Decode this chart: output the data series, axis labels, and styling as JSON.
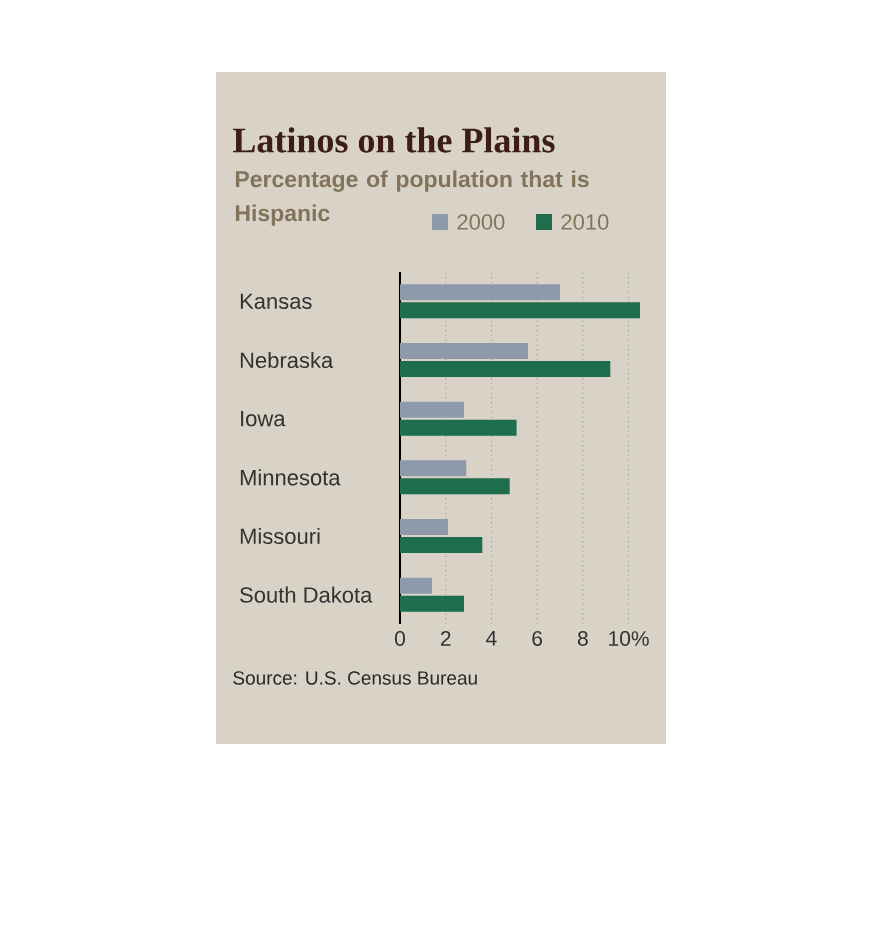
{
  "chart_data": {
    "type": "bar",
    "orientation": "horizontal",
    "title": "Latinos on the Plains",
    "subtitle": "Percentage of population that is Hispanic",
    "categories": [
      "Kansas",
      "Nebraska",
      "Iowa",
      "Minnesota",
      "Missouri",
      "South Dakota"
    ],
    "series": [
      {
        "name": "2000",
        "color": "#8e9aab",
        "values": [
          7.0,
          5.6,
          2.8,
          2.9,
          2.1,
          1.4
        ]
      },
      {
        "name": "2010",
        "color": "#1e6e4e",
        "values": [
          10.5,
          9.2,
          5.1,
          4.8,
          3.6,
          2.8
        ]
      }
    ],
    "xlim": [
      0,
      10.5
    ],
    "xticks": [
      0,
      2,
      4,
      6,
      8,
      {
        "value": 10,
        "label": "10%"
      }
    ],
    "grid": "x",
    "legend": "top",
    "annotations": [
      "Source: U.S. Census Bureau"
    ]
  }
}
